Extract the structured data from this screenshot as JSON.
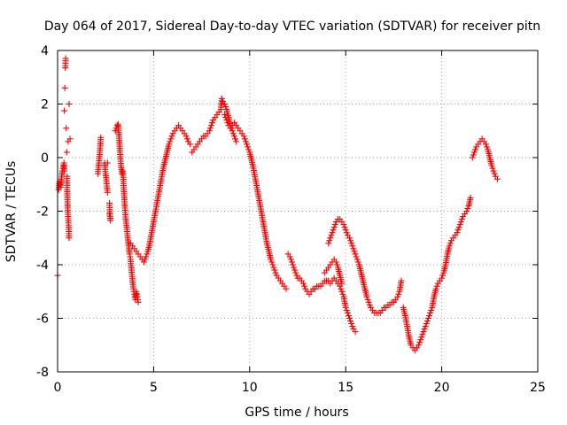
{
  "chart_data": {
    "type": "scatter",
    "title": "Day 064 of 2017, Sidereal Day-to-day VTEC variation (SDTVAR) for receiver pitn",
    "xlabel": "GPS time / hours",
    "ylabel": "SDTVAR / TECUs",
    "xlim": [
      0,
      25
    ],
    "ylim": [
      -8,
      4
    ],
    "xticks": [
      0,
      5,
      10,
      15,
      20,
      25
    ],
    "yticks": [
      -8,
      -6,
      -4,
      -2,
      0,
      2,
      4
    ],
    "grid": true,
    "marker": "plus",
    "color": "#ff0000",
    "series": [
      {
        "name": "",
        "points": [
          [
            0.0,
            -4.4
          ],
          [
            0.05,
            -1.2
          ],
          [
            0.1,
            -0.9
          ],
          [
            0.15,
            -1.1
          ],
          [
            0.2,
            -0.8
          ],
          [
            0.25,
            -0.5
          ],
          [
            0.3,
            -0.3
          ],
          [
            0.33,
            -0.2
          ],
          [
            0.35,
            -0.5
          ],
          [
            0.35,
            1.75
          ],
          [
            0.38,
            2.6
          ],
          [
            0.4,
            3.35
          ],
          [
            0.42,
            3.7
          ],
          [
            0.45,
            1.1
          ],
          [
            0.48,
            0.2
          ],
          [
            0.5,
            -0.7
          ],
          [
            0.5,
            -1.2
          ],
          [
            0.52,
            -1.8
          ],
          [
            0.55,
            -2.2
          ],
          [
            0.58,
            -2.6
          ],
          [
            0.6,
            -3.0
          ],
          [
            0.55,
            0.6
          ],
          [
            0.6,
            2.0
          ],
          [
            0.65,
            0.7
          ]
        ]
      },
      {
        "name": "",
        "points": [
          [
            2.1,
            -0.6
          ],
          [
            2.15,
            -0.2
          ],
          [
            2.2,
            0.2
          ],
          [
            2.25,
            0.75
          ],
          [
            2.45,
            -0.2
          ],
          [
            2.5,
            -0.6
          ],
          [
            2.55,
            -0.9
          ],
          [
            2.6,
            -1.3
          ],
          [
            2.6,
            -0.2
          ],
          [
            2.7,
            -2.1
          ],
          [
            2.75,
            -2.35
          ],
          [
            2.7,
            -1.7
          ]
        ]
      },
      {
        "name": "",
        "points": [
          [
            3.0,
            1.0
          ],
          [
            3.05,
            1.1
          ],
          [
            3.1,
            1.2
          ],
          [
            3.15,
            1.25
          ],
          [
            3.2,
            0.8
          ],
          [
            3.25,
            0.2
          ],
          [
            3.3,
            -0.3
          ],
          [
            3.35,
            -0.6
          ],
          [
            3.4,
            -0.5
          ],
          [
            3.45,
            -1.2
          ],
          [
            3.5,
            -1.8
          ],
          [
            3.55,
            -2.3
          ],
          [
            3.6,
            -2.6
          ],
          [
            3.65,
            -3.0
          ],
          [
            3.7,
            -3.3
          ],
          [
            3.75,
            -3.6
          ],
          [
            3.8,
            -3.8
          ],
          [
            3.85,
            -4.2
          ],
          [
            3.9,
            -4.6
          ],
          [
            3.95,
            -4.9
          ],
          [
            4.0,
            -5.1
          ],
          [
            4.05,
            -5.3
          ],
          [
            4.1,
            -5.0
          ],
          [
            4.15,
            -5.2
          ],
          [
            4.2,
            -5.4
          ],
          [
            3.8,
            -3.2
          ],
          [
            3.9,
            -3.3
          ],
          [
            4.0,
            -3.4
          ],
          [
            4.1,
            -3.5
          ],
          [
            4.2,
            -3.6
          ],
          [
            4.3,
            -3.7
          ],
          [
            4.4,
            -3.8
          ],
          [
            4.5,
            -3.9
          ],
          [
            4.6,
            -3.7
          ],
          [
            4.7,
            -3.5
          ],
          [
            4.8,
            -3.2
          ],
          [
            4.9,
            -2.8
          ],
          [
            5.0,
            -2.4
          ],
          [
            5.1,
            -2.0
          ],
          [
            5.2,
            -1.6
          ],
          [
            5.3,
            -1.2
          ],
          [
            5.4,
            -0.8
          ],
          [
            5.5,
            -0.4
          ],
          [
            5.6,
            -0.1
          ],
          [
            5.7,
            0.2
          ],
          [
            5.8,
            0.5
          ],
          [
            5.9,
            0.7
          ],
          [
            6.0,
            0.9
          ],
          [
            6.1,
            1.0
          ],
          [
            6.2,
            1.1
          ],
          [
            6.3,
            1.2
          ],
          [
            6.4,
            1.1
          ],
          [
            6.5,
            1.0
          ],
          [
            6.6,
            0.9
          ],
          [
            6.7,
            0.8
          ],
          [
            6.8,
            0.6
          ],
          [
            6.9,
            0.5
          ]
        ]
      },
      {
        "name": "",
        "points": [
          [
            7.0,
            0.2
          ],
          [
            7.1,
            0.3
          ],
          [
            7.2,
            0.4
          ],
          [
            7.3,
            0.5
          ],
          [
            7.4,
            0.6
          ],
          [
            7.5,
            0.7
          ],
          [
            7.6,
            0.8
          ],
          [
            7.7,
            0.8
          ],
          [
            7.8,
            0.9
          ],
          [
            7.9,
            1.0
          ],
          [
            8.0,
            1.2
          ],
          [
            8.1,
            1.4
          ],
          [
            8.2,
            1.5
          ],
          [
            8.3,
            1.6
          ],
          [
            8.4,
            1.7
          ],
          [
            8.5,
            1.8
          ],
          [
            8.55,
            2.2
          ],
          [
            8.6,
            2.1
          ],
          [
            8.7,
            2.0
          ],
          [
            8.8,
            1.8
          ],
          [
            8.9,
            1.5
          ],
          [
            9.0,
            1.2
          ],
          [
            9.1,
            1.0
          ],
          [
            9.2,
            0.8
          ],
          [
            9.3,
            0.6
          ],
          [
            8.7,
            1.6
          ],
          [
            8.8,
            1.4
          ],
          [
            8.9,
            1.2
          ],
          [
            9.0,
            1.1
          ],
          [
            9.1,
            1.2
          ],
          [
            9.2,
            1.3
          ],
          [
            9.3,
            1.2
          ],
          [
            9.4,
            1.1
          ],
          [
            9.5,
            1.0
          ],
          [
            9.6,
            0.9
          ],
          [
            9.7,
            0.8
          ],
          [
            9.8,
            0.6
          ],
          [
            9.9,
            0.4
          ],
          [
            10.0,
            0.2
          ],
          [
            10.1,
            -0.1
          ],
          [
            10.2,
            -0.4
          ],
          [
            10.3,
            -0.8
          ],
          [
            10.4,
            -1.2
          ],
          [
            10.5,
            -1.6
          ],
          [
            10.6,
            -2.0
          ],
          [
            10.7,
            -2.4
          ],
          [
            10.8,
            -2.8
          ],
          [
            10.9,
            -3.2
          ],
          [
            11.0,
            -3.5
          ],
          [
            11.1,
            -3.8
          ],
          [
            11.2,
            -4.0
          ],
          [
            11.3,
            -4.2
          ],
          [
            11.4,
            -4.4
          ],
          [
            11.5,
            -4.5
          ],
          [
            11.6,
            -4.6
          ],
          [
            11.7,
            -4.7
          ],
          [
            11.8,
            -4.8
          ],
          [
            11.9,
            -4.9
          ]
        ]
      },
      {
        "name": "",
        "points": [
          [
            12.0,
            -3.6
          ],
          [
            12.1,
            -3.7
          ],
          [
            12.2,
            -3.9
          ],
          [
            12.3,
            -4.1
          ],
          [
            12.4,
            -4.3
          ],
          [
            12.5,
            -4.5
          ],
          [
            12.6,
            -4.5
          ],
          [
            12.7,
            -4.6
          ],
          [
            12.8,
            -4.7
          ],
          [
            12.9,
            -4.9
          ],
          [
            13.0,
            -5.0
          ],
          [
            13.1,
            -5.1
          ],
          [
            13.2,
            -5.0
          ],
          [
            13.3,
            -4.9
          ],
          [
            13.4,
            -4.9
          ],
          [
            13.5,
            -4.8
          ],
          [
            13.6,
            -4.8
          ],
          [
            13.7,
            -4.8
          ],
          [
            13.8,
            -4.7
          ],
          [
            13.9,
            -4.6
          ],
          [
            14.0,
            -4.6
          ],
          [
            14.1,
            -4.6
          ],
          [
            14.2,
            -4.7
          ],
          [
            14.3,
            -4.6
          ],
          [
            14.4,
            -4.5
          ],
          [
            14.5,
            -4.6
          ],
          [
            14.6,
            -4.7
          ],
          [
            14.7,
            -4.8
          ],
          [
            14.8,
            -5.0
          ],
          [
            14.9,
            -5.2
          ],
          [
            15.0,
            -5.6
          ],
          [
            15.1,
            -5.8
          ],
          [
            15.2,
            -6.0
          ],
          [
            15.3,
            -6.2
          ],
          [
            15.4,
            -6.4
          ],
          [
            15.5,
            -6.5
          ]
        ]
      },
      {
        "name": "",
        "points": [
          [
            13.9,
            -4.3
          ],
          [
            14.0,
            -4.2
          ],
          [
            14.1,
            -4.1
          ],
          [
            14.2,
            -4.0
          ],
          [
            14.3,
            -3.9
          ],
          [
            14.4,
            -3.8
          ],
          [
            14.5,
            -3.9
          ],
          [
            14.6,
            -4.1
          ],
          [
            14.7,
            -4.4
          ],
          [
            14.8,
            -4.7
          ],
          [
            14.1,
            -3.2
          ],
          [
            14.2,
            -3.0
          ],
          [
            14.3,
            -2.8
          ],
          [
            14.4,
            -2.6
          ],
          [
            14.5,
            -2.4
          ],
          [
            14.6,
            -2.3
          ],
          [
            14.7,
            -2.3
          ],
          [
            14.8,
            -2.4
          ],
          [
            14.9,
            -2.5
          ],
          [
            15.0,
            -2.7
          ],
          [
            15.1,
            -2.9
          ],
          [
            15.2,
            -3.0
          ],
          [
            15.3,
            -3.2
          ],
          [
            15.4,
            -3.4
          ],
          [
            15.5,
            -3.6
          ],
          [
            15.6,
            -3.8
          ],
          [
            15.7,
            -4.0
          ],
          [
            15.8,
            -4.3
          ],
          [
            15.9,
            -4.6
          ],
          [
            16.0,
            -4.9
          ],
          [
            16.1,
            -5.2
          ],
          [
            16.2,
            -5.4
          ],
          [
            16.3,
            -5.6
          ],
          [
            16.4,
            -5.7
          ],
          [
            16.5,
            -5.8
          ],
          [
            16.6,
            -5.8
          ],
          [
            16.7,
            -5.8
          ],
          [
            16.8,
            -5.8
          ],
          [
            16.9,
            -5.7
          ],
          [
            17.0,
            -5.6
          ],
          [
            17.1,
            -5.6
          ],
          [
            17.2,
            -5.5
          ],
          [
            17.3,
            -5.5
          ],
          [
            17.4,
            -5.4
          ],
          [
            17.5,
            -5.4
          ],
          [
            17.6,
            -5.3
          ],
          [
            17.7,
            -5.2
          ],
          [
            17.8,
            -5.0
          ],
          [
            17.9,
            -4.6
          ]
        ]
      },
      {
        "name": "",
        "points": [
          [
            18.0,
            -5.6
          ],
          [
            18.1,
            -5.9
          ],
          [
            18.2,
            -6.3
          ],
          [
            18.3,
            -6.7
          ],
          [
            18.4,
            -7.0
          ],
          [
            18.5,
            -7.1
          ],
          [
            18.6,
            -7.2
          ],
          [
            18.7,
            -7.1
          ],
          [
            18.8,
            -7.0
          ],
          [
            18.9,
            -6.8
          ],
          [
            19.0,
            -6.6
          ],
          [
            19.1,
            -6.4
          ],
          [
            19.2,
            -6.2
          ],
          [
            19.3,
            -6.0
          ],
          [
            19.4,
            -5.8
          ],
          [
            19.5,
            -5.6
          ],
          [
            19.6,
            -5.2
          ],
          [
            19.7,
            -4.9
          ],
          [
            19.8,
            -4.7
          ],
          [
            19.9,
            -4.6
          ],
          [
            20.0,
            -4.5
          ],
          [
            20.1,
            -4.3
          ],
          [
            20.2,
            -4.0
          ],
          [
            20.3,
            -3.6
          ],
          [
            20.4,
            -3.3
          ],
          [
            20.5,
            -3.1
          ],
          [
            20.6,
            -3.0
          ],
          [
            20.7,
            -2.9
          ],
          [
            20.8,
            -2.8
          ],
          [
            20.9,
            -2.6
          ],
          [
            21.0,
            -2.4
          ],
          [
            21.1,
            -2.2
          ],
          [
            21.2,
            -2.1
          ],
          [
            21.3,
            -2.0
          ],
          [
            21.4,
            -1.8
          ],
          [
            21.5,
            -1.5
          ]
        ]
      },
      {
        "name": "",
        "points": [
          [
            21.6,
            0.0
          ],
          [
            21.7,
            0.2
          ],
          [
            21.8,
            0.4
          ],
          [
            21.9,
            0.5
          ],
          [
            22.0,
            0.6
          ],
          [
            22.1,
            0.7
          ],
          [
            22.2,
            0.6
          ],
          [
            22.3,
            0.5
          ],
          [
            22.4,
            0.3
          ],
          [
            22.5,
            0.0
          ],
          [
            22.6,
            -0.3
          ],
          [
            22.7,
            -0.5
          ],
          [
            22.8,
            -0.7
          ],
          [
            22.9,
            -0.8
          ]
        ]
      }
    ]
  }
}
